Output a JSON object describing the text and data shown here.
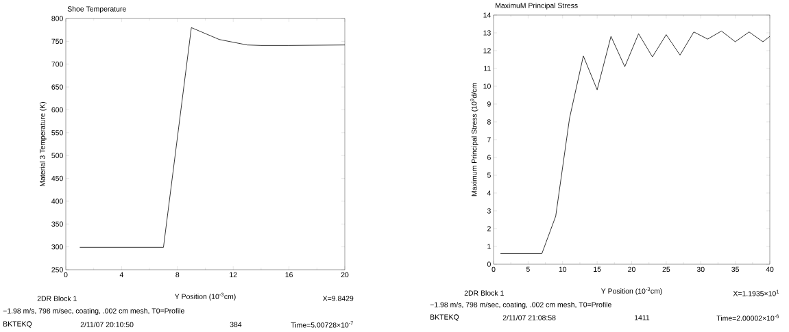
{
  "chart_data": [
    {
      "type": "line",
      "title": "Shoe Temperature",
      "xlabel": "Y Position (10$^{-3}$cm)",
      "ylabel": "Material 3 Temperature (K)",
      "xlim": [
        0,
        20
      ],
      "ylim": [
        250,
        800
      ],
      "xticks": [
        0,
        4,
        8,
        12,
        16,
        20
      ],
      "yticks": [
        250,
        300,
        350,
        400,
        450,
        500,
        550,
        600,
        650,
        700,
        750,
        800
      ],
      "series": [
        {
          "color": "#000000",
          "x": [
            1,
            7,
            9,
            11,
            13,
            14,
            16,
            20
          ],
          "values": [
            299,
            299,
            780,
            754,
            742,
            741,
            741,
            742
          ]
        }
      ],
      "annotations": [
        "2DR Block 1",
        "X=9.8429",
        "−1.98 m/s, 798 m/sec, coating, .002 cm mesh, T0=Profile",
        "BKTEKQ",
        "2/11/07 20:10:50",
        "384",
        "Time=5.00728×10$^{-7}$"
      ]
    },
    {
      "type": "line",
      "title": "MaximuM Principal Stress",
      "xlabel": "Y Position (10$^{-3}$cm)",
      "ylabel": "Maximum Principal Stress (10$^{9}$d/cm",
      "xlim": [
        0,
        40
      ],
      "ylim": [
        0,
        14
      ],
      "xticks": [
        0,
        5,
        10,
        15,
        20,
        25,
        30,
        35,
        40
      ],
      "yticks": [
        0,
        1,
        2,
        3,
        4,
        5,
        6,
        7,
        8,
        9,
        10,
        11,
        12,
        13,
        14
      ],
      "series": [
        {
          "color": "#000000",
          "x": [
            1,
            7,
            9,
            11,
            13,
            15,
            17,
            19,
            21,
            23,
            25,
            27,
            29,
            31,
            33,
            35,
            37,
            39,
            40
          ],
          "values": [
            0.6,
            0.6,
            2.7,
            8.2,
            11.7,
            9.8,
            12.8,
            11.1,
            12.95,
            11.65,
            12.9,
            11.75,
            13.05,
            12.65,
            13.1,
            12.5,
            13.05,
            12.5,
            12.8
          ]
        }
      ],
      "annotations": [
        "2DR Block 1",
        "X=1.1935×10$^{1}$",
        "−1.98 m/s, 798 m/sec, coating, .002 cm mesh, T0=Profile",
        "BKTEKQ",
        "2/11/07 21:08:58",
        "1411",
        "Time=2.00002×10$^{-6}$"
      ]
    }
  ]
}
